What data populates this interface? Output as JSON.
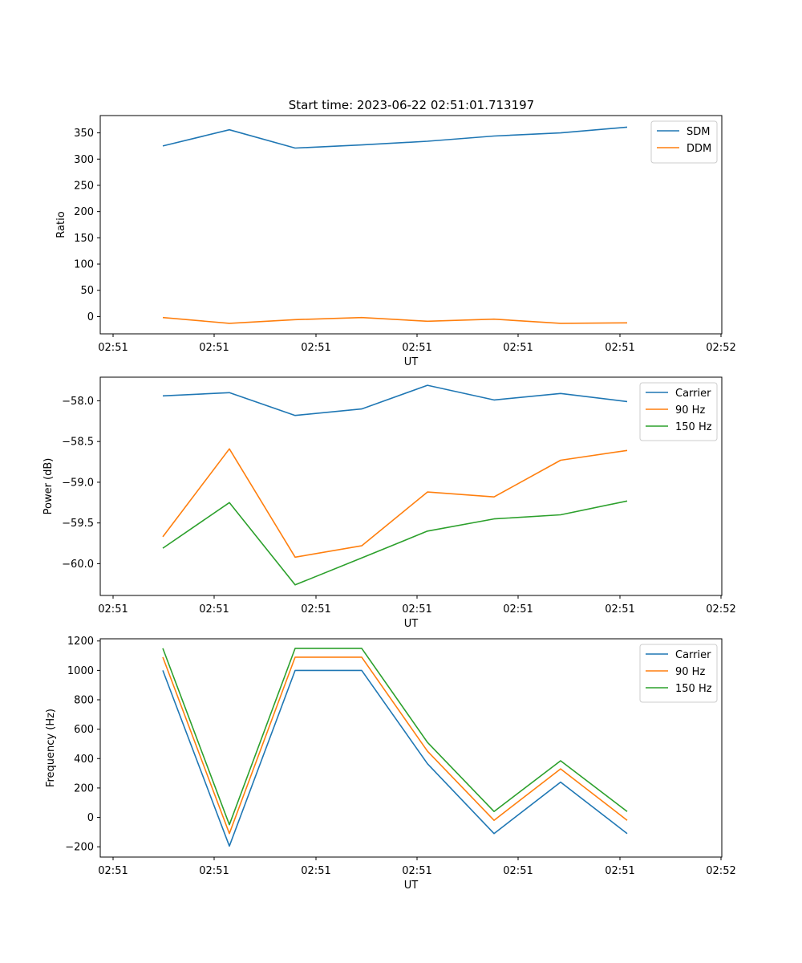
{
  "figure": {
    "title": "Start time: 2023-06-22 02:51:01.713197"
  },
  "chart_data": [
    {
      "type": "line",
      "title": "Start time: 2023-06-22 02:51:01.713197",
      "xlabel": "UT",
      "ylabel": "Ratio",
      "x_tick_labels": [
        "02:51",
        "02:51",
        "02:51",
        "02:51",
        "02:51",
        "02:51",
        "02:52"
      ],
      "y_ticks": [
        0,
        50,
        100,
        150,
        200,
        250,
        300,
        350
      ],
      "y_tick_labels": [
        "0",
        "50",
        "100",
        "150",
        "200",
        "250",
        "300",
        "350"
      ],
      "ylim": [
        -33,
        383
      ],
      "x_points": 8,
      "legend_position": "top-right",
      "series": [
        {
          "name": "SDM",
          "color": "#1f77b4",
          "values": [
            325,
            356,
            321,
            327,
            334,
            344,
            350,
            361
          ]
        },
        {
          "name": "DDM",
          "color": "#ff7f0e",
          "values": [
            -2,
            -13,
            -6,
            -2,
            -9,
            -5,
            -13,
            -12
          ]
        }
      ]
    },
    {
      "type": "line",
      "title": "",
      "xlabel": "UT",
      "ylabel": "Power (dB)",
      "x_tick_labels": [
        "02:51",
        "02:51",
        "02:51",
        "02:51",
        "02:51",
        "02:51",
        "02:52"
      ],
      "y_ticks": [
        -60.0,
        -59.5,
        -59.0,
        -58.5,
        -58.0
      ],
      "y_tick_labels": [
        "−60.0",
        "−59.5",
        "−59.0",
        "−58.5",
        "−58.0"
      ],
      "ylim": [
        -60.39,
        -57.71
      ],
      "x_points": 8,
      "legend_position": "top-right",
      "series": [
        {
          "name": "Carrier",
          "color": "#1f77b4",
          "values": [
            -57.94,
            -57.9,
            -58.18,
            -58.1,
            -57.81,
            -57.99,
            -57.91,
            -58.01
          ]
        },
        {
          "name": "90 Hz",
          "color": "#ff7f0e",
          "values": [
            -59.67,
            -58.59,
            -59.92,
            -59.78,
            -59.12,
            -59.18,
            -58.73,
            -58.61
          ]
        },
        {
          "name": "150 Hz",
          "color": "#2ca02c",
          "values": [
            -59.81,
            -59.25,
            -60.26,
            -59.93,
            -59.6,
            -59.45,
            -59.4,
            -59.23
          ]
        }
      ]
    },
    {
      "type": "line",
      "title": "",
      "xlabel": "UT",
      "ylabel": "Frequency (Hz)",
      "x_tick_labels": [
        "02:51",
        "02:51",
        "02:51",
        "02:51",
        "02:51",
        "02:51",
        "02:52"
      ],
      "y_ticks": [
        -200,
        0,
        200,
        400,
        600,
        800,
        1000,
        1200
      ],
      "y_tick_labels": [
        "−200",
        "0",
        "200",
        "400",
        "600",
        "800",
        "1000",
        "1200"
      ],
      "ylim": [
        -270,
        1215
      ],
      "x_points": 8,
      "legend_position": "top-right",
      "series": [
        {
          "name": "Carrier",
          "color": "#1f77b4",
          "values": [
            1000,
            -195,
            1000,
            1000,
            365,
            -110,
            240,
            -110
          ]
        },
        {
          "name": "90 Hz",
          "color": "#ff7f0e",
          "values": [
            1090,
            -110,
            1090,
            1090,
            450,
            -20,
            330,
            -20
          ]
        },
        {
          "name": "150 Hz",
          "color": "#2ca02c",
          "values": [
            1150,
            -50,
            1150,
            1150,
            510,
            40,
            385,
            40
          ]
        }
      ]
    }
  ]
}
